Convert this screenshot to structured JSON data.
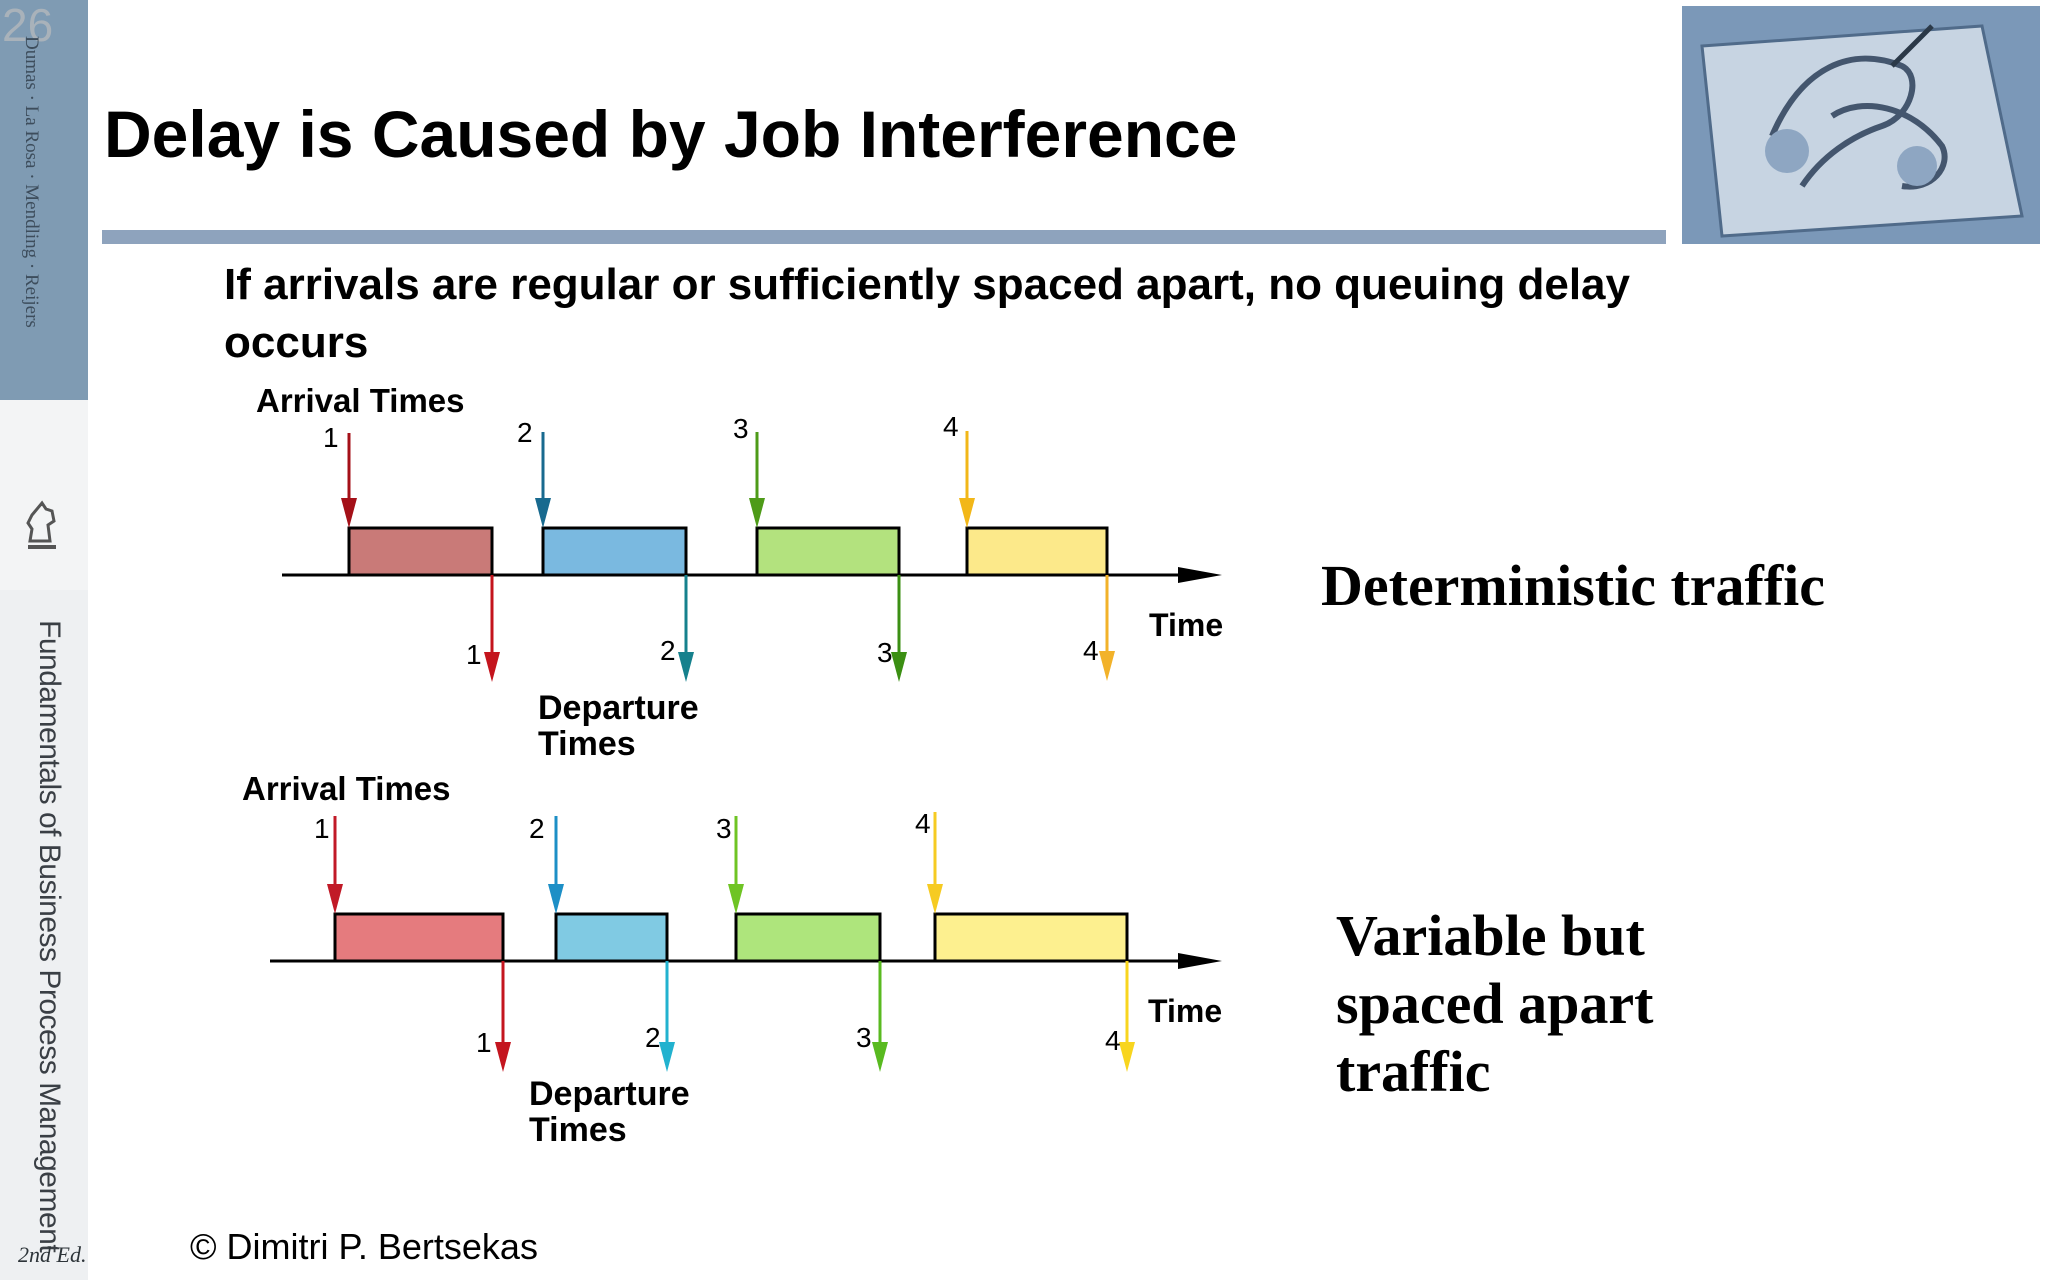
{
  "slide": {
    "page_number": "26",
    "title": "Delay is Caused by Job Interference",
    "subtitle": "If arrivals are regular or sufficiently spaced apart, no queuing delay occurs",
    "copyright": "© Dimitri P. Bertsekas"
  },
  "sidebar": {
    "authors": "Dumas · La Rosa · Mendling · Reijers",
    "book_title": "Fundamentals of Business Process Management",
    "edition": "2nd Ed."
  },
  "diagrams": [
    {
      "arrival_label": "Arrival Times",
      "departure_label": "Departure Times",
      "time_label": "Time",
      "caption": "Deterministic traffic",
      "job_numbers": [
        "1",
        "2",
        "3",
        "4"
      ],
      "colors": [
        "#c97a78",
        "#7ab9e0",
        "#b3e27e",
        "#fce98a"
      ],
      "arrow_colors": [
        "#a41018",
        "#186a8f",
        "#4e9b18",
        "#f2b718"
      ],
      "departure_arrow_colors": [
        "#c4141d",
        "#16818d",
        "#3b8f13",
        "#f2b22a"
      ]
    },
    {
      "arrival_label": "Arrival Times",
      "departure_label": "Departure Times",
      "time_label": "Time",
      "caption": "Variable but spaced apart traffic",
      "job_numbers": [
        "1",
        "2",
        "3",
        "4"
      ],
      "colors": [
        "#e57b7e",
        "#80cae3",
        "#aee57c",
        "#fdf08f"
      ],
      "arrow_colors": [
        "#c11a27",
        "#1d8fc6",
        "#6fc424",
        "#f6cb22"
      ],
      "departure_arrow_colors": [
        "#c4151f",
        "#22b2cf",
        "#59ba20",
        "#f8d51f"
      ]
    }
  ]
}
